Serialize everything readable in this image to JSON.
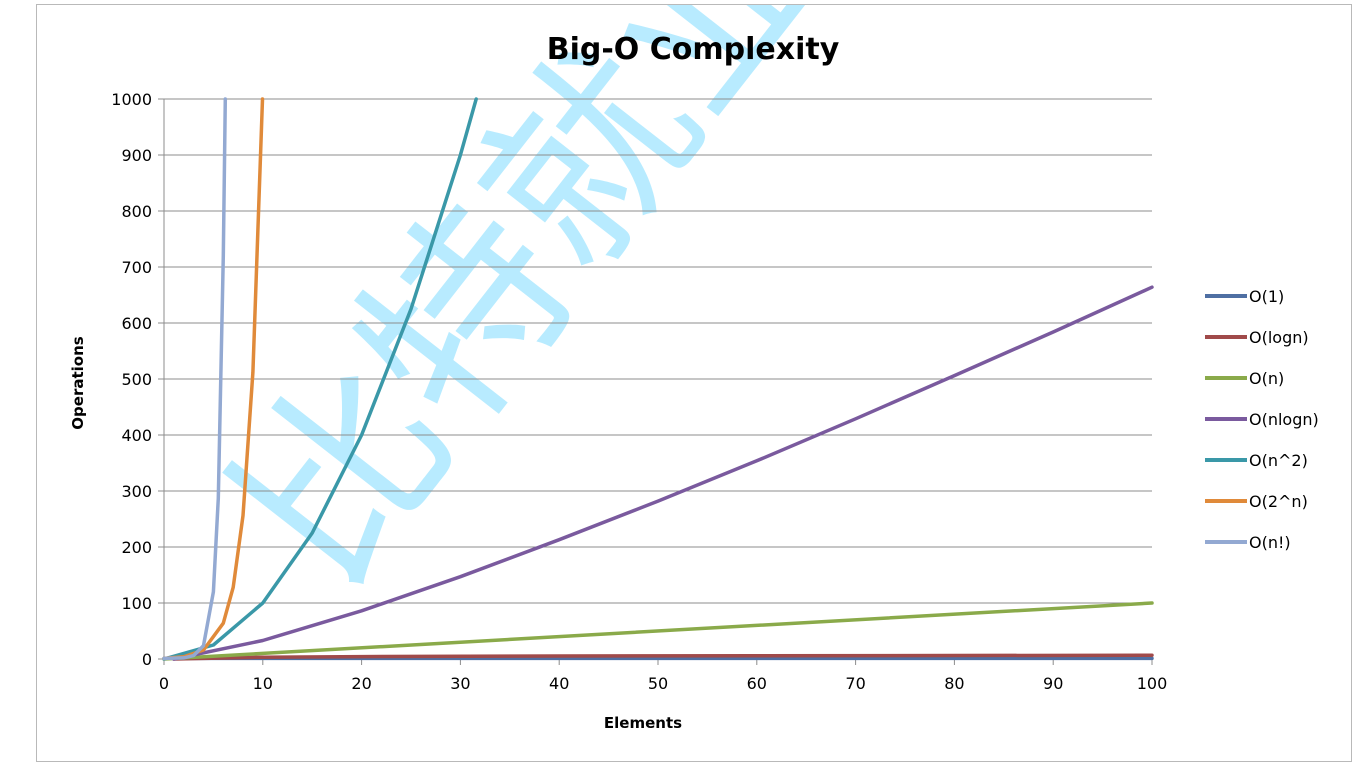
{
  "chart_data": {
    "type": "line",
    "title": "Big-O Complexity",
    "xlabel": "Elements",
    "ylabel": "Operations",
    "xlim": [
      0,
      100
    ],
    "ylim": [
      0,
      1000
    ],
    "x_ticks": [
      0,
      10,
      20,
      30,
      40,
      50,
      60,
      70,
      80,
      90,
      100
    ],
    "y_ticks": [
      0,
      100,
      200,
      300,
      400,
      500,
      600,
      700,
      800,
      900,
      1000
    ],
    "grid": "horizontal",
    "legend_position": "right",
    "watermark": "比特就业",
    "series": [
      {
        "name": "O(1)",
        "color": "#4f6fa3",
        "points": [
          [
            0,
            1
          ],
          [
            100,
            1
          ]
        ]
      },
      {
        "name": "O(logn)",
        "color": "#a04a4a",
        "points": [
          [
            1,
            0
          ],
          [
            10,
            3.3
          ],
          [
            20,
            4.3
          ],
          [
            40,
            5.3
          ],
          [
            60,
            5.9
          ],
          [
            80,
            6.3
          ],
          [
            100,
            6.6
          ]
        ]
      },
      {
        "name": "O(n)",
        "color": "#8aaa4a",
        "points": [
          [
            0,
            0
          ],
          [
            100,
            100
          ]
        ]
      },
      {
        "name": "O(nlogn)",
        "color": "#7a5a9e",
        "points": [
          [
            1,
            0
          ],
          [
            10,
            33
          ],
          [
            20,
            86
          ],
          [
            30,
            147
          ],
          [
            40,
            213
          ],
          [
            50,
            282
          ],
          [
            60,
            354
          ],
          [
            70,
            429
          ],
          [
            80,
            506
          ],
          [
            90,
            584
          ],
          [
            100,
            664
          ]
        ]
      },
      {
        "name": "O(n^2)",
        "color": "#3a98a8",
        "points": [
          [
            0,
            0
          ],
          [
            5,
            25
          ],
          [
            10,
            100
          ],
          [
            15,
            225
          ],
          [
            20,
            400
          ],
          [
            25,
            625
          ],
          [
            30,
            900
          ],
          [
            31.6,
            1000
          ]
        ]
      },
      {
        "name": "O(2^n)",
        "color": "#e08a3a",
        "points": [
          [
            0,
            1
          ],
          [
            2,
            4
          ],
          [
            4,
            16
          ],
          [
            6,
            64
          ],
          [
            7,
            128
          ],
          [
            8,
            256
          ],
          [
            9,
            512
          ],
          [
            9.97,
            1000
          ]
        ]
      },
      {
        "name": "O(n!)",
        "color": "#93a9d2",
        "points": [
          [
            0,
            1
          ],
          [
            2,
            2
          ],
          [
            3,
            6
          ],
          [
            4,
            24
          ],
          [
            5,
            120
          ],
          [
            5.5,
            287
          ],
          [
            6,
            720
          ],
          [
            6.2,
            1000
          ]
        ]
      }
    ]
  }
}
